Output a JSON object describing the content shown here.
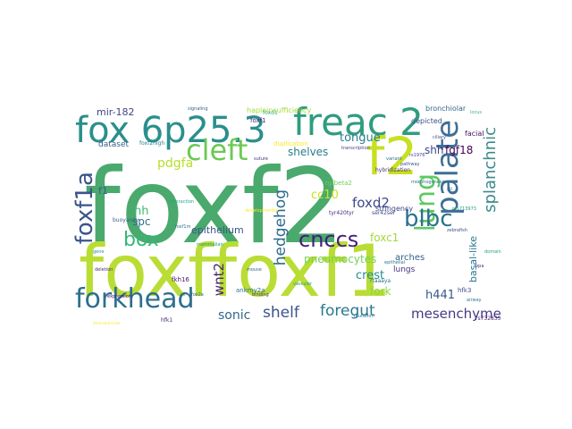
{
  "cloud": {
    "words": [
      {
        "text": "foxf2",
        "color": "#4aa96c"
      },
      {
        "text": "foxffoxf1",
        "color": "#b9dd34"
      },
      {
        "text": "freac 2",
        "color": "#2f9c7f"
      },
      {
        "text": "fox 6p25.3",
        "color": "#2a8f8c"
      },
      {
        "text": "f2",
        "color": "#c7e020"
      },
      {
        "text": "cleft",
        "color": "#6cc953"
      },
      {
        "text": "palate",
        "color": "#3e6e94"
      },
      {
        "text": "lung",
        "color": "#5ec962"
      },
      {
        "text": "forkhead",
        "color": "#2d6f8e"
      },
      {
        "text": "foxf1a",
        "color": "#3a548c"
      },
      {
        "text": "cnccs",
        "color": "#45207a"
      },
      {
        "text": "blbc",
        "color": "#2c728e"
      },
      {
        "text": "box",
        "color": "#35b779"
      },
      {
        "text": "splanchnic",
        "color": "#3b8a8c"
      },
      {
        "text": "hedgehog",
        "color": "#2e6b8e"
      },
      {
        "text": "pdgfa",
        "color": "#b8de29"
      },
      {
        "text": "shelf",
        "color": "#3b528b"
      },
      {
        "text": "foregut",
        "color": "#2a788e"
      },
      {
        "text": "mesenchyme",
        "color": "#443a83"
      },
      {
        "text": "sonic",
        "color": "#31688e"
      },
      {
        "text": "wnt2",
        "color": "#482475"
      },
      {
        "text": "foxd2",
        "color": "#3e4989"
      },
      {
        "text": "foxc1",
        "color": "#a0da39"
      },
      {
        "text": "fork",
        "color": "#8bd646"
      },
      {
        "text": "crest",
        "color": "#228c8d"
      },
      {
        "text": "h441",
        "color": "#39568c"
      },
      {
        "text": "basal-like",
        "color": "#2a768e"
      },
      {
        "text": "tongue",
        "color": "#287d8e"
      },
      {
        "text": "shh",
        "color": "#3f4788"
      },
      {
        "text": "fgf18",
        "color": "#440154"
      },
      {
        "text": "hh",
        "color": "#3dbc74"
      },
      {
        "text": "spc",
        "color": "#2c728e"
      },
      {
        "text": "shelves",
        "color": "#287c8e"
      },
      {
        "text": "cc10",
        "color": "#cde11d"
      },
      {
        "text": "pneumocytes",
        "color": "#75d054"
      },
      {
        "text": "epithelium",
        "color": "#3a548c"
      },
      {
        "text": "mir-182",
        "color": "#414487"
      },
      {
        "text": "f1",
        "color": "#355f8d"
      },
      {
        "text": "dataset",
        "color": "#355f8d"
      },
      {
        "text": "foxf2high",
        "color": "#26828e"
      },
      {
        "text": "arches",
        "color": "#355f8d"
      },
      {
        "text": "lungs",
        "color": "#46337e"
      },
      {
        "text": "tgfbeta2",
        "color": "#6ece58"
      },
      {
        "text": "tyr420tyr",
        "color": "#472d7b"
      },
      {
        "text": "stringency",
        "color": "#3f4788"
      },
      {
        "text": "hybridization",
        "color": "#46337e"
      },
      {
        "text": "bronchiolar",
        "color": "#31688e"
      },
      {
        "text": "facial",
        "color": "#471063"
      },
      {
        "text": "depicted",
        "color": "#3b528b"
      },
      {
        "text": "haploinsufficiency",
        "color": "#a5db36"
      },
      {
        "text": "duplication",
        "color": "#fde725"
      },
      {
        "text": "buoyancy",
        "color": "#33638d"
      },
      {
        "text": "foxf1m",
        "color": "#2c728e"
      },
      {
        "text": "ankmy2a",
        "color": "#2d708e"
      },
      {
        "text": "fkh16",
        "color": "#481a6c"
      },
      {
        "text": "hfk3",
        "color": "#3b528b"
      },
      {
        "text": "mammalian",
        "color": "#1f988b"
      },
      {
        "text": "foxf1",
        "color": "#482878"
      },
      {
        "text": "foxd1",
        "color": "#29af7f"
      },
      {
        "text": "ser42ser",
        "color": "#3e4a89"
      },
      {
        "text": "rtaaaya",
        "color": "#2d708e"
      },
      {
        "text": "hfk1",
        "color": "#472c7a"
      },
      {
        "text": "rs732835",
        "color": "#482475"
      },
      {
        "text": "rs1713973",
        "color": "#1f9a8a"
      },
      {
        "text": "atrioventricular",
        "color": "#fde725"
      },
      {
        "text": "suture",
        "color": "#46307e"
      },
      {
        "text": "morphogenesis",
        "color": "#2e6f8e"
      },
      {
        "text": "fox2a",
        "color": "#31688e"
      },
      {
        "text": "pathway",
        "color": "#3b528b"
      },
      {
        "text": "gli",
        "color": "#2a788e"
      },
      {
        "text": "epithelial",
        "color": "#2c738e"
      },
      {
        "text": "transcription",
        "color": "#424186"
      },
      {
        "text": "interaction",
        "color": "#22a884"
      },
      {
        "text": "developmental",
        "color": "#fde725"
      },
      {
        "text": "rs1976",
        "color": "#414487"
      },
      {
        "text": "airway",
        "color": "#2a788e"
      },
      {
        "text": "vascular",
        "color": "#1e9b8a"
      },
      {
        "text": "ciliary",
        "color": "#3d4d8a"
      },
      {
        "text": "bpa",
        "color": "#46327e"
      },
      {
        "text": "signaling",
        "color": "#355f8d"
      },
      {
        "text": "variant",
        "color": "#2c718e"
      },
      {
        "text": "gene",
        "color": "#21918c"
      },
      {
        "text": "expression",
        "color": "#440154"
      },
      {
        "text": "mouse",
        "color": "#31688e"
      },
      {
        "text": "zebrafish",
        "color": "#3b528b"
      },
      {
        "text": "locus",
        "color": "#35b779"
      },
      {
        "text": "deletion",
        "color": "#482878"
      },
      {
        "text": "mutation",
        "color": "#2a788e"
      },
      {
        "text": "binding",
        "color": "#443983"
      },
      {
        "text": "domain",
        "color": "#20a486"
      }
    ]
  }
}
